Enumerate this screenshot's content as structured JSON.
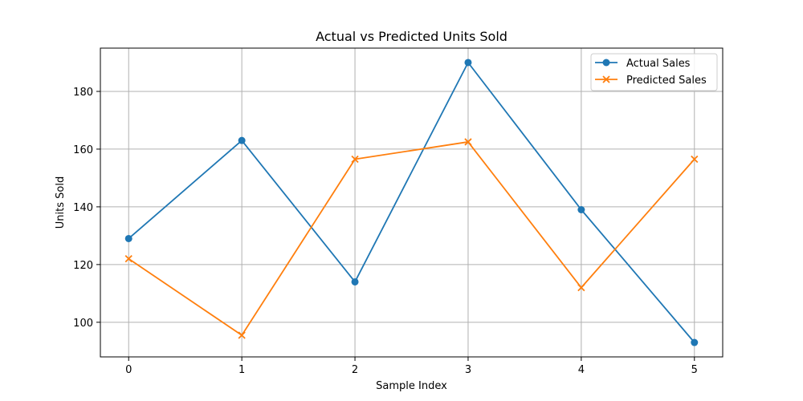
{
  "chart_data": {
    "type": "line",
    "title": "Actual vs Predicted Units Sold",
    "xlabel": "Sample Index",
    "ylabel": "Units Sold",
    "x": [
      0,
      1,
      2,
      3,
      4,
      5
    ],
    "x_ticks": [
      "0",
      "1",
      "2",
      "3",
      "4",
      "5"
    ],
    "y_ticks": [
      "100",
      "120",
      "140",
      "160",
      "180"
    ],
    "xlim": [
      -0.25,
      5.25
    ],
    "ylim": [
      88,
      195
    ],
    "grid": true,
    "legend_position": "top-right",
    "series": [
      {
        "name": "Actual Sales",
        "values": [
          129,
          163,
          114,
          190,
          139,
          93
        ],
        "color": "#1f77b4",
        "marker": "circle"
      },
      {
        "name": "Predicted Sales",
        "values": [
          122,
          95.5,
          156.5,
          162.5,
          112,
          156.5
        ],
        "color": "#ff7f0e",
        "marker": "x"
      }
    ]
  }
}
